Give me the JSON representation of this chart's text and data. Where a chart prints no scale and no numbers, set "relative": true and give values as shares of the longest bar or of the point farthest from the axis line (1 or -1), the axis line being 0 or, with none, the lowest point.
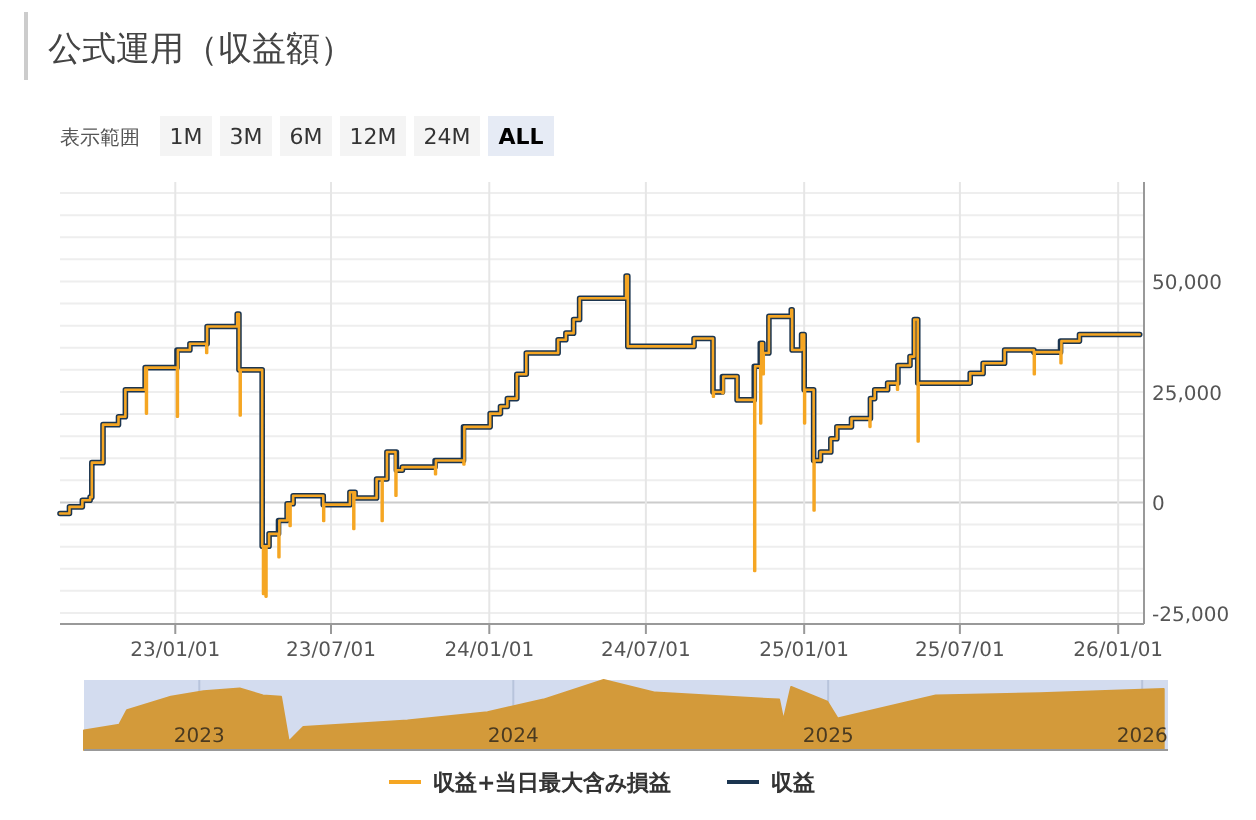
{
  "chart_data": [
    {
      "type": "step",
      "title": "公式運用（収益額）",
      "annotations": [
        "表示範囲",
        "1M",
        "3M",
        "6M",
        "12M",
        "24M",
        "ALL"
      ],
      "xlim": [
        "2022-08-20",
        "2026-01-31"
      ],
      "xticks": [
        {
          "value": "2023-01-01",
          "label": "23/01/01"
        },
        {
          "value": "2023-07-01",
          "label": "23/07/01"
        },
        {
          "value": "2024-01-01",
          "label": "24/01/01"
        },
        {
          "value": "2024-07-01",
          "label": "24/07/01"
        },
        {
          "value": "2025-01-01",
          "label": "25/01/01"
        },
        {
          "value": "2025-07-01",
          "label": "25/07/01"
        },
        {
          "value": "2026-01-01",
          "label": "26/01/01"
        }
      ],
      "ylim": [
        -27500,
        72500
      ],
      "yticks": [
        {
          "value": -25000,
          "label": "-25,000"
        },
        {
          "value": -20000,
          "label": null
        },
        {
          "value": -15000,
          "label": null
        },
        {
          "value": -10000,
          "label": null
        },
        {
          "value": -5000,
          "label": null
        },
        0,
        {
          "value": 5000,
          "label": null
        },
        {
          "value": 10000,
          "label": null
        },
        {
          "value": 15000,
          "label": null
        },
        {
          "value": 20000,
          "label": null
        },
        {
          "value": 25000,
          "label": "25,000"
        },
        {
          "value": 30000,
          "label": null
        },
        {
          "value": 35000,
          "label": null
        },
        {
          "value": 40000,
          "label": null
        },
        {
          "value": 45000,
          "label": null
        },
        {
          "value": 50000,
          "label": "50,000"
        },
        {
          "value": 55000,
          "label": null
        },
        {
          "value": 60000,
          "label": null
        },
        {
          "value": 65000,
          "label": null
        },
        {
          "value": 70000,
          "label": null
        }
      ],
      "grid": true,
      "legend": "bottom",
      "series": [
        {
          "name": "収益+当日最大含み損益",
          "color": "#f5a623",
          "x": [
            "2022-08-20",
            "2022-08-31",
            "2022-09-15",
            "2022-09-24",
            "2022-09-26",
            "2022-10-09",
            "2022-10-27",
            "2022-11-04",
            "2022-11-27",
            "2022-11-28",
            "2022-11-29",
            "2023-01-03",
            "2023-01-04",
            "2023-01-18",
            "2023-02-06",
            "2023-02-07",
            "2023-03-14",
            "2023-03-16",
            "2023-03-17",
            "2023-03-18",
            "2023-04-12",
            "2023-04-13",
            "2023-04-14",
            "2023-04-16",
            "2023-04-17",
            "2023-04-20",
            "2023-05-01",
            "2023-05-02",
            "2023-05-11",
            "2023-05-14",
            "2023-05-15",
            "2023-05-18",
            "2023-06-22",
            "2023-06-23",
            "2023-07-23",
            "2023-07-27",
            "2023-07-28",
            "2023-07-29",
            "2023-08-23",
            "2023-08-29",
            "2023-08-30",
            "2023-09-04",
            "2023-09-14",
            "2023-09-15",
            "2023-09-22",
            "2023-10-30",
            "2023-10-31",
            "2023-12-02",
            "2023-12-03",
            "2024-01-02",
            "2024-01-14",
            "2024-01-22",
            "2024-02-02",
            "2024-02-13",
            "2024-03-21",
            "2024-03-30",
            "2024-04-08",
            "2024-04-15",
            "2024-06-08",
            "2024-06-10",
            "2024-08-26",
            "2024-09-17",
            "2024-09-18",
            "2024-09-28",
            "2024-09-29",
            "2024-10-15",
            "2024-11-04",
            "2024-11-05",
            "2024-11-11",
            "2024-11-12",
            "2024-11-14",
            "2024-11-15",
            "2024-11-21",
            "2024-12-17",
            "2024-12-18",
            "2024-12-29",
            "2025-01-01",
            "2025-01-02",
            "2025-01-12",
            "2025-01-13",
            "2025-01-20",
            "2025-02-01",
            "2025-02-08",
            "2025-02-25",
            "2025-03-18",
            "2025-03-19",
            "2025-03-24",
            "2025-04-08",
            "2025-04-19",
            "2025-04-20",
            "2025-05-04",
            "2025-05-09",
            "2025-05-13",
            "2025-05-14",
            "2025-07-13",
            "2025-07-28",
            "2025-08-22",
            "2025-09-25",
            "2025-09-26",
            "2025-10-26",
            "2025-10-27",
            "2025-11-17",
            "2026-01-26"
          ],
          "values": [
            -2500,
            -1000,
            500,
            1200,
            9000,
            17600,
            19400,
            25500,
            30500,
            20100,
            30500,
            19400,
            34500,
            35900,
            33800,
            39800,
            42600,
            30000,
            19700,
            30000,
            -9900,
            -20700,
            -9900,
            -21300,
            -9900,
            -7100,
            -12400,
            -4100,
            -300,
            -5300,
            -300,
            1500,
            -4200,
            -500,
            2300,
            -6000,
            2300,
            1000,
            5300,
            -4200,
            5300,
            11400,
            1500,
            7300,
            8000,
            6400,
            9500,
            8600,
            17100,
            20100,
            21700,
            23500,
            29000,
            33800,
            36800,
            38300,
            41400,
            46200,
            51200,
            35300,
            37100,
            23900,
            25000,
            24700,
            28500,
            23200,
            -15500,
            30800,
            17900,
            36000,
            29000,
            33800,
            42100,
            43600,
            34500,
            38000,
            17900,
            25500,
            -1800,
            9500,
            11400,
            14400,
            17100,
            19000,
            17100,
            23500,
            25500,
            27000,
            25500,
            31000,
            33000,
            41400,
            13800,
            27000,
            29200,
            31500,
            34500,
            29000,
            34000,
            31500,
            36500,
            38000,
            38000
          ]
        },
        {
          "name": "収益",
          "color": "#1b3550",
          "x": [
            "2022-08-20",
            "2022-08-31",
            "2022-09-15",
            "2022-09-24",
            "2022-09-26",
            "2022-10-09",
            "2022-10-27",
            "2022-11-04",
            "2022-11-27",
            "2023-01-03",
            "2023-01-18",
            "2023-02-07",
            "2023-03-14",
            "2023-03-16",
            "2023-04-12",
            "2023-04-20",
            "2023-05-01",
            "2023-05-11",
            "2023-05-18",
            "2023-06-22",
            "2023-07-23",
            "2023-07-29",
            "2023-08-23",
            "2023-09-04",
            "2023-09-15",
            "2023-09-22",
            "2023-10-30",
            "2023-12-02",
            "2024-01-02",
            "2024-01-14",
            "2024-01-22",
            "2024-02-02",
            "2024-02-13",
            "2024-03-21",
            "2024-03-30",
            "2024-04-08",
            "2024-04-15",
            "2024-06-08",
            "2024-06-10",
            "2024-08-26",
            "2024-09-17",
            "2024-09-28",
            "2024-10-15",
            "2024-11-04",
            "2024-11-11",
            "2024-11-14",
            "2024-11-21",
            "2024-12-17",
            "2024-12-18",
            "2024-12-29",
            "2025-01-01",
            "2025-01-12",
            "2025-01-20",
            "2025-02-01",
            "2025-02-08",
            "2025-02-25",
            "2025-03-19",
            "2025-03-24",
            "2025-04-08",
            "2025-04-20",
            "2025-05-04",
            "2025-05-09",
            "2025-05-13",
            "2025-07-13",
            "2025-07-28",
            "2025-08-22",
            "2025-09-25",
            "2025-10-26",
            "2025-11-17",
            "2026-01-26"
          ],
          "values": [
            -2500,
            -1000,
            500,
            1200,
            9000,
            17600,
            19400,
            25500,
            30500,
            34500,
            35900,
            39800,
            42600,
            30000,
            -9900,
            -7100,
            -4100,
            -300,
            1500,
            -500,
            2300,
            1000,
            5300,
            11400,
            7300,
            8000,
            9500,
            17100,
            20100,
            21700,
            23500,
            29000,
            33800,
            36800,
            38300,
            41400,
            46200,
            51200,
            35300,
            37100,
            25000,
            28500,
            23200,
            30800,
            36000,
            33800,
            42100,
            43600,
            34500,
            38000,
            25500,
            9500,
            11400,
            14400,
            17100,
            19000,
            23500,
            25500,
            27000,
            31000,
            33000,
            41400,
            27000,
            29200,
            31500,
            34500,
            34000,
            36500,
            38000,
            38000
          ]
        }
      ]
    },
    {
      "type": "area",
      "relative": true,
      "xlim": [
        "2022-08-20",
        "2026-01-31"
      ],
      "xticks": [
        {
          "value": "2023-01-01",
          "label": "2023"
        },
        {
          "value": "2024-01-01",
          "label": "2024"
        },
        {
          "value": "2025-01-01",
          "label": "2025"
        },
        {
          "value": "2026-01-01",
          "label": "2026"
        }
      ],
      "grid": "x",
      "series": [
        {
          "color": "#d39a3a",
          "x": [
            "2022-08-20",
            "2022-09-30",
            "2022-10-09",
            "2022-11-29",
            "2023-01-06",
            "2023-02-17",
            "2023-03-16",
            "2023-04-06",
            "2023-04-15",
            "2023-05-02",
            "2023-08-31",
            "2023-12-02",
            "2024-02-05",
            "2024-04-15",
            "2024-06-14",
            "2024-11-05",
            "2024-11-10",
            "2024-11-19",
            "2024-12-31",
            "2025-01-12",
            "2025-05-06",
            "2025-09-04",
            "2026-01-26"
          ],
          "values": [
            0.28,
            0.36,
            0.57,
            0.76,
            0.84,
            0.88,
            0.78,
            0.76,
            0.12,
            0.33,
            0.42,
            0.54,
            0.72,
            1.0,
            0.82,
            0.72,
            0.42,
            0.9,
            0.69,
            0.45,
            0.78,
            0.81,
            0.87
          ]
        }
      ]
    }
  ]
}
